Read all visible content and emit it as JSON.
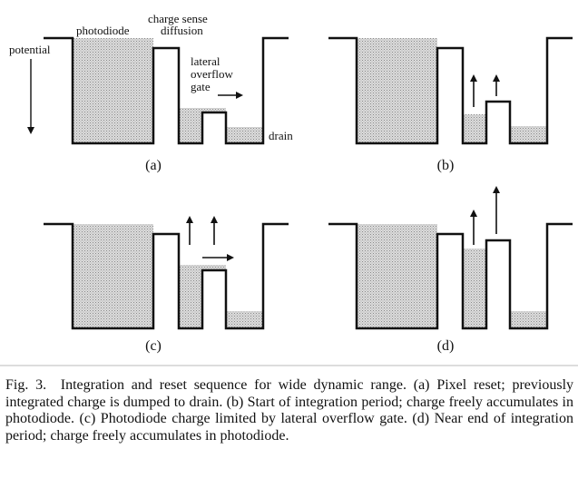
{
  "panels": [
    {
      "id": "a",
      "sublabel": "(a)",
      "labels": {
        "potential": "potential",
        "photodiode": "photodiode",
        "charge_sense_line1": "charge sense",
        "charge_sense_line2": "diffusion",
        "lateral_line1": "lateral",
        "lateral_line2": "overflow",
        "lateral_line3": "gate",
        "drain": "drain"
      }
    },
    {
      "id": "b",
      "sublabel": "(b)"
    },
    {
      "id": "c",
      "sublabel": "(c)"
    },
    {
      "id": "d",
      "sublabel": "(d)"
    }
  ],
  "caption": {
    "fig": "Fig. 3.",
    "text": "Integration and reset sequence for wide dynamic range. (a) Pixel reset; previously integrated charge is dumped to drain. (b) Start of integration period; charge freely accumulates in photodiode. (c) Photodiode charge limited by lateral overflow gate. (d) Near end of integration period; charge freely accumulates in photodiode."
  }
}
